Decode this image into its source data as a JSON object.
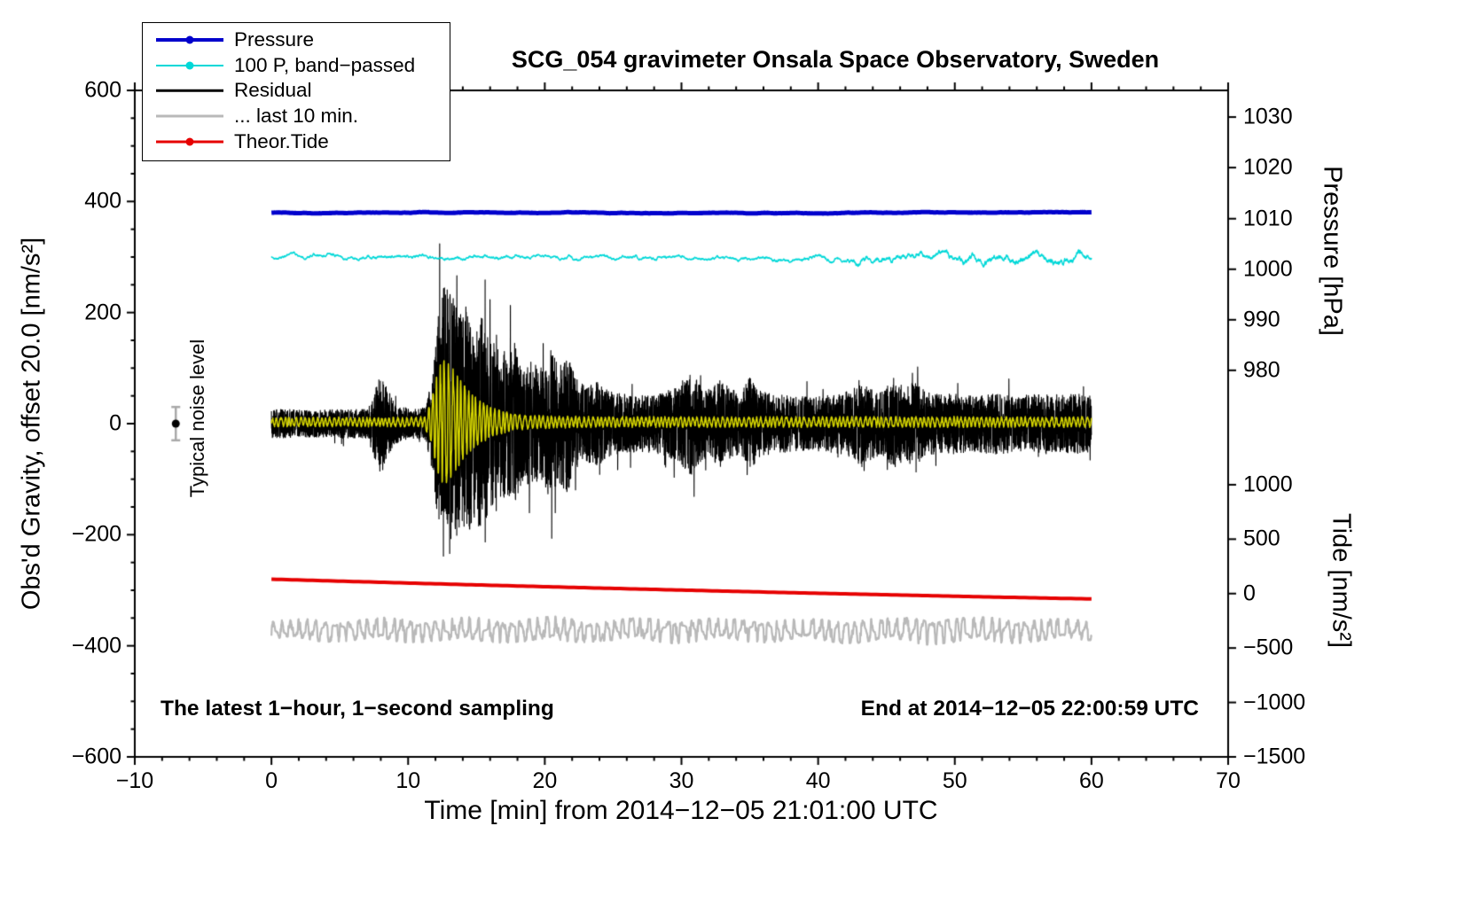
{
  "title": "SCG_054 gravimeter Onsala Space Observatory, Sweden",
  "annotations": {
    "noise_label": "Typical noise level",
    "sampling_note": "The latest 1−hour, 1−second sampling",
    "end_note": "End at 2014−12−05 22:00:59 UTC"
  },
  "legend": {
    "items": [
      {
        "label": "Pressure",
        "color": "#0000cc",
        "dot": true,
        "width": 4
      },
      {
        "label": "100 P, band−passed",
        "color": "#00d8d8",
        "dot": true,
        "width": 2
      },
      {
        "label": "Residual",
        "color": "#000000",
        "dot": false,
        "width": 2.5
      },
      {
        "label": "... last 10 min.",
        "color": "#b9b9b9",
        "dot": false,
        "width": 3
      },
      {
        "label": "Theor.Tide",
        "color": "#e60000",
        "dot": true,
        "width": 3
      }
    ]
  },
  "axes": {
    "x": {
      "label": "Time [min] from 2014−12−05 21:01:00 UTC",
      "min": -10,
      "max": 70,
      "minor_step": 2,
      "major_ticks": [
        -10,
        0,
        10,
        20,
        30,
        40,
        50,
        60,
        70
      ],
      "tick_labels": [
        "−10",
        "0",
        "10",
        "20",
        "30",
        "40",
        "50",
        "60",
        "70"
      ]
    },
    "y_left": {
      "label": "Obs'd Gravity, offset 20.0 [nm/s²]",
      "min": -600,
      "max": 600,
      "minor_step": 50,
      "major_ticks": [
        600,
        400,
        200,
        0,
        -200,
        -400,
        -600
      ],
      "tick_labels": [
        "600",
        "400",
        "200",
        "0",
        "−200",
        "−400",
        "−600"
      ]
    },
    "y_right_pressure": {
      "label": "Pressure [hPa]",
      "tick_labels": [
        "1030",
        "1020",
        "1010",
        "1000",
        "990",
        "980"
      ],
      "tick_values": [
        1030,
        1020,
        1010,
        1000,
        990,
        980
      ],
      "tick_gravity_pos": [
        552,
        461,
        369,
        278,
        187,
        96
      ]
    },
    "y_right_tide": {
      "label": "Tide [nm/s²]",
      "tick_labels": [
        "1000",
        "500",
        "0",
        "−500",
        "−1000",
        "−1500"
      ],
      "tick_values": [
        1000,
        500,
        0,
        -500,
        -1000,
        -1500
      ],
      "tick_gravity_pos": [
        -110,
        -208,
        -306,
        -404,
        -502,
        -600
      ]
    }
  },
  "chart_data": {
    "type": "line",
    "x_span": [
      0,
      60
    ],
    "x_units": "minutes from 2014-12-05 21:01:00 UTC",
    "y_units_gravity": "nm/s², offset 20.0",
    "pressure_mean_hPa": 1011,
    "series": [
      {
        "name": "... last 10 min.",
        "color": "#b9b9b9",
        "width": 2.2,
        "kind": "quasi",
        "mean": -372,
        "freq": 1.6,
        "seed": 505,
        "points": 2600,
        "envelope": [
          [
            0,
            16
          ],
          [
            3,
            20
          ],
          [
            6,
            18
          ],
          [
            9,
            22
          ],
          [
            12,
            19
          ],
          [
            15,
            22
          ],
          [
            18,
            20
          ],
          [
            21,
            23
          ],
          [
            24,
            18
          ],
          [
            27,
            20
          ],
          [
            30,
            22
          ],
          [
            33,
            19
          ],
          [
            36,
            21
          ],
          [
            39,
            18
          ],
          [
            42,
            22
          ],
          [
            45,
            20
          ],
          [
            48,
            24
          ],
          [
            51,
            21
          ],
          [
            54,
            23
          ],
          [
            57,
            19
          ],
          [
            60,
            18
          ]
        ]
      },
      {
        "name": "Theor.Tide",
        "color": "#e60000",
        "width": 4,
        "kind": "poly",
        "mean": -280,
        "slope": -0.72,
        "quad": 0.0021,
        "points": 160
      },
      {
        "name": "Residual",
        "color": "#000000",
        "width": 1.1,
        "kind": "white",
        "mean": 0,
        "seed": 303,
        "points": 7200,
        "envelope": [
          [
            0,
            26
          ],
          [
            3,
            24
          ],
          [
            5,
            26
          ],
          [
            7,
            26
          ],
          [
            7.5,
            60
          ],
          [
            8,
            90
          ],
          [
            8.5,
            70
          ],
          [
            9,
            40
          ],
          [
            9.5,
            30
          ],
          [
            10.5,
            26
          ],
          [
            11.3,
            30
          ],
          [
            11.8,
            90
          ],
          [
            12.2,
            200
          ],
          [
            12.7,
            272
          ],
          [
            13.2,
            235
          ],
          [
            13.8,
            195
          ],
          [
            14.3,
            215
          ],
          [
            14.8,
            170
          ],
          [
            15.4,
            195
          ],
          [
            16,
            150
          ],
          [
            16.6,
            165
          ],
          [
            17.2,
            125
          ],
          [
            17.8,
            145
          ],
          [
            18.5,
            105
          ],
          [
            19.2,
            118
          ],
          [
            19.8,
            100
          ],
          [
            20.4,
            138
          ],
          [
            21,
            105
          ],
          [
            21.6,
            128
          ],
          [
            22.2,
            88
          ],
          [
            23,
            68
          ],
          [
            23.8,
            78
          ],
          [
            24.6,
            60
          ],
          [
            25.5,
            55
          ],
          [
            27,
            50
          ],
          [
            28.5,
            55
          ],
          [
            29.5,
            65
          ],
          [
            30.2,
            80
          ],
          [
            30.8,
            95
          ],
          [
            31.3,
            70
          ],
          [
            32,
            60
          ],
          [
            32.8,
            85
          ],
          [
            33.6,
            62
          ],
          [
            34.4,
            58
          ],
          [
            35,
            88
          ],
          [
            35.6,
            62
          ],
          [
            36.5,
            55
          ],
          [
            38,
            50
          ],
          [
            39.5,
            48
          ],
          [
            41,
            52
          ],
          [
            42.5,
            60
          ],
          [
            43.2,
            78
          ],
          [
            44,
            62
          ],
          [
            44.8,
            58
          ],
          [
            45.5,
            85
          ],
          [
            46.2,
            68
          ],
          [
            47,
            75
          ],
          [
            48,
            58
          ],
          [
            49,
            52
          ],
          [
            50,
            55
          ],
          [
            51.5,
            50
          ],
          [
            53,
            56
          ],
          [
            54.5,
            50
          ],
          [
            56,
            54
          ],
          [
            57.5,
            50
          ],
          [
            59,
            55
          ],
          [
            60,
            50
          ]
        ]
      },
      {
        "name": "Residual band-passed",
        "color": "#d4d400",
        "width": 1.5,
        "kind": "osc",
        "mean": 3,
        "freq": 3.2,
        "seed": 404,
        "points": 4200,
        "envelope": [
          [
            0,
            7
          ],
          [
            5,
            7
          ],
          [
            10,
            7
          ],
          [
            11.2,
            8
          ],
          [
            11.7,
            35
          ],
          [
            12.1,
            85
          ],
          [
            12.5,
            112
          ],
          [
            13,
            105
          ],
          [
            13.5,
            88
          ],
          [
            14,
            68
          ],
          [
            14.6,
            50
          ],
          [
            15.2,
            38
          ],
          [
            16,
            27
          ],
          [
            17,
            18
          ],
          [
            18,
            13
          ],
          [
            19,
            11
          ],
          [
            20,
            10
          ],
          [
            22,
            9
          ],
          [
            25,
            8
          ],
          [
            30,
            8
          ],
          [
            40,
            8
          ],
          [
            50,
            8
          ],
          [
            60,
            8
          ]
        ]
      },
      {
        "name": "100 P, band−passed",
        "color": "#00d8d8",
        "width": 1.5,
        "kind": "smooth",
        "mean": 300,
        "seed": 202,
        "points": 3000,
        "envelope": [
          [
            0,
            6
          ],
          [
            10,
            6
          ],
          [
            20,
            6
          ],
          [
            30,
            6
          ],
          [
            36,
            6
          ],
          [
            40,
            8
          ],
          [
            42,
            9
          ],
          [
            43,
            13
          ],
          [
            44,
            10
          ],
          [
            45,
            14
          ],
          [
            46,
            10
          ],
          [
            47,
            12
          ],
          [
            48,
            10
          ],
          [
            49,
            13
          ],
          [
            50,
            11
          ],
          [
            51,
            13
          ],
          [
            52,
            11
          ],
          [
            53,
            14
          ],
          [
            54,
            12
          ],
          [
            55,
            14
          ],
          [
            56,
            12
          ],
          [
            57,
            15
          ],
          [
            58,
            13
          ],
          [
            59,
            15
          ],
          [
            60,
            13
          ]
        ]
      },
      {
        "name": "Pressure",
        "color": "#0000cc",
        "width": 5,
        "kind": "smooth",
        "mean": 380,
        "seed": 101,
        "points": 800,
        "envelope": [
          [
            0,
            1.3
          ],
          [
            60,
            1.3
          ]
        ]
      }
    ],
    "noise_marker": {
      "x": -7,
      "y": 0,
      "error": 30,
      "bar_color": "#a9a9a9",
      "dot_color": "#000000"
    }
  }
}
